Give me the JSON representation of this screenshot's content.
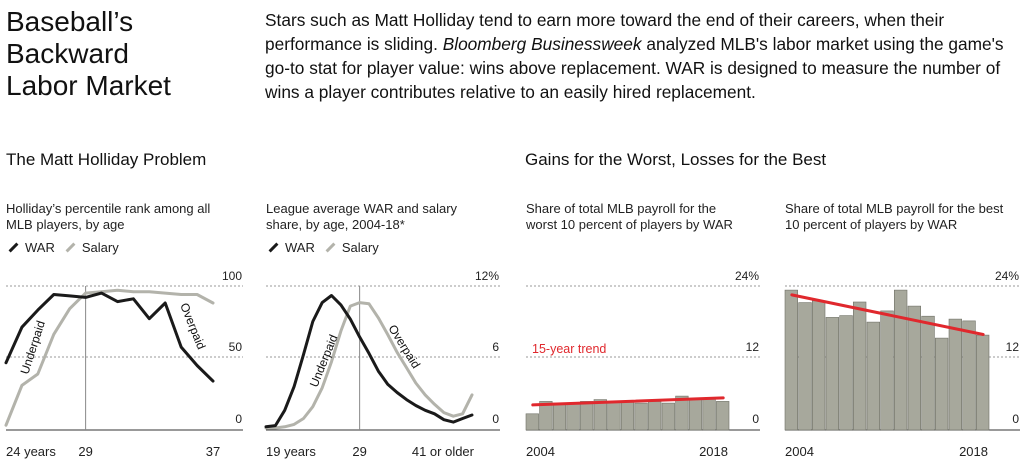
{
  "header": {
    "title_lines": [
      "Baseball’s",
      "Backward",
      "Labor Market"
    ],
    "deck_part1": "Stars such as Matt Holliday tend to earn more toward the end of their careers, when their performance is sliding. ",
    "deck_italic": "Bloomberg Businessweek",
    "deck_part2": " analyzed MLB's labor market using the game's go-to stat for player value: wins above replacement. WAR is designed to measure the number of wins a player contributes relative to an easily hired replacement."
  },
  "sections": {
    "left": "The Matt Holliday Problem",
    "right": "Gains for the Worst, Losses for the Best"
  },
  "colors": {
    "war": "#1a1a1a",
    "salary": "#b3b3ab",
    "bar": "#a7a89c",
    "trend": "#e0282d",
    "grid": "#9a9a9a"
  },
  "legend": {
    "war": "WAR",
    "salary": "Salary"
  },
  "chart_data": [
    {
      "type": "line",
      "subtitle_lines": [
        "Holliday’s percentile rank among all",
        "MLB players, by age"
      ],
      "x": [
        24,
        25,
        26,
        27,
        28,
        29,
        30,
        31,
        32,
        33,
        34,
        35,
        36,
        37
      ],
      "series": [
        {
          "name": "WAR",
          "values": [
            46,
            71,
            83,
            94,
            93,
            92,
            95,
            89,
            91,
            77,
            88,
            57,
            44,
            33
          ]
        },
        {
          "name": "Salary",
          "values": [
            2,
            30,
            38,
            66,
            84,
            95,
            96,
            97,
            96,
            96,
            95,
            94,
            94,
            88
          ]
        }
      ],
      "ylim": [
        0,
        100
      ],
      "yticks": [
        "100",
        "50",
        "0"
      ],
      "xtick_labels": [
        "24 years",
        "29",
        "37"
      ],
      "annotations": [
        "Underpaid",
        "Overpaid"
      ]
    },
    {
      "type": "line",
      "subtitle_lines": [
        "League average WAR and salary",
        "share, by age, 2004-18*"
      ],
      "x": [
        19,
        20,
        21,
        22,
        23,
        24,
        25,
        26,
        27,
        28,
        29,
        30,
        31,
        32,
        33,
        34,
        35,
        36,
        37,
        38,
        39,
        40,
        41
      ],
      "series": [
        {
          "name": "WAR",
          "values": [
            0.1,
            0.2,
            1.5,
            3.5,
            6.2,
            9.0,
            10.6,
            11.2,
            10.4,
            9.2,
            7.7,
            6.3,
            4.8,
            3.7,
            3.0,
            2.4,
            1.9,
            1.5,
            1.2,
            0.7,
            0.5,
            0.8,
            1.1
          ]
        },
        {
          "name": "Salary",
          "values": [
            0.0,
            0.0,
            0.1,
            0.3,
            0.8,
            1.8,
            3.4,
            5.6,
            8.2,
            10.3,
            10.6,
            10.5,
            9.3,
            7.9,
            6.4,
            5.1,
            3.8,
            2.8,
            2.0,
            1.3,
            1.0,
            1.2,
            2.8
          ]
        }
      ],
      "ylim": [
        0,
        12
      ],
      "yticks": [
        "12%",
        "6",
        "0"
      ],
      "xtick_labels": [
        "19 years",
        "29",
        "41 or older"
      ],
      "annotations": [
        "Underpaid",
        "Overpaid"
      ]
    },
    {
      "type": "bar",
      "subtitle_lines": [
        "Share of total MLB payroll for the",
        "worst 10 percent of players by WAR"
      ],
      "x": [
        2004,
        2005,
        2006,
        2007,
        2008,
        2009,
        2010,
        2011,
        2012,
        2013,
        2014,
        2015,
        2016,
        2017,
        2018
      ],
      "values": [
        2.4,
        4.5,
        4.2,
        4.2,
        4.5,
        4.8,
        4.5,
        4.5,
        4.2,
        4.5,
        4.2,
        5.4,
        4.8,
        5.1,
        4.5
      ],
      "trend": {
        "label": "15-year trend",
        "start": 3.9,
        "end": 5.1
      },
      "ylim": [
        0,
        24
      ],
      "yticks": [
        "24%",
        "12",
        "0"
      ],
      "xtick_labels": [
        "2004",
        "2018"
      ]
    },
    {
      "type": "bar",
      "subtitle_lines": [
        "Share of total MLB payroll for the best",
        "10 percent of players by WAR"
      ],
      "x": [
        2004,
        2005,
        2006,
        2007,
        2008,
        2009,
        2010,
        2011,
        2012,
        2013,
        2014,
        2015,
        2016,
        2017,
        2018
      ],
      "values": [
        23.3,
        21.2,
        21.5,
        18.7,
        19.0,
        21.3,
        17.9,
        19.8,
        23.3,
        20.6,
        18.9,
        15.2,
        18.4,
        18.1,
        15.7
      ],
      "trend": {
        "start": 22.5,
        "end": 15.8
      },
      "ylim": [
        0,
        24
      ],
      "yticks": [
        "24%",
        "12",
        "0"
      ],
      "xtick_labels": [
        "2004",
        "2018"
      ]
    }
  ]
}
